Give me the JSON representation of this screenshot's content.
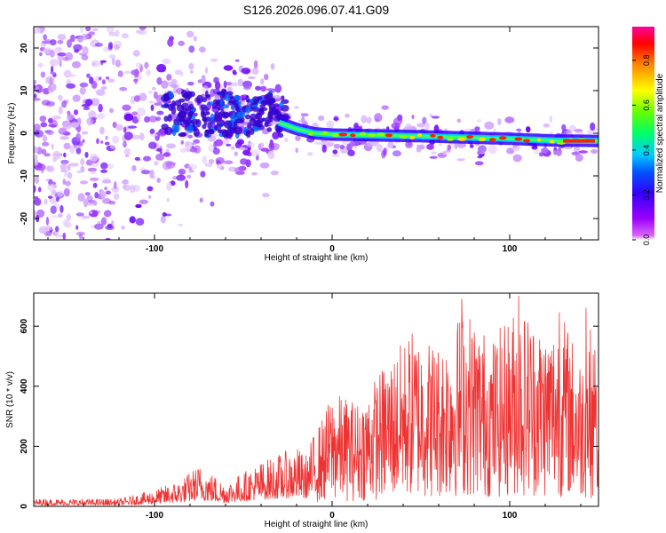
{
  "title": "S126.2026.096.07.41.G09",
  "chart_data": [
    {
      "type": "heatmap",
      "name": "spectrogram",
      "xlabel": "Height of straight line (km)",
      "ylabel": "Frequency (Hz)",
      "xlim": [
        -168,
        150
      ],
      "ylim": [
        -25,
        25
      ],
      "xticks": [
        -100,
        0,
        100
      ],
      "xtick_labels": [
        "-100",
        "0",
        "100"
      ],
      "yticks": [
        -20,
        -10,
        0,
        10,
        20
      ],
      "ytick_labels": [
        "-20",
        "-10",
        "0",
        "10",
        "20"
      ],
      "ridge_frequency_hz": [
        {
          "x": -30,
          "y": 2.5
        },
        {
          "x": -20,
          "y": 1.0
        },
        {
          "x": -10,
          "y": 0.0
        },
        {
          "x": 0,
          "y": -0.3
        },
        {
          "x": 25,
          "y": -0.5
        },
        {
          "x": 50,
          "y": -0.7
        },
        {
          "x": 75,
          "y": -1.0
        },
        {
          "x": 100,
          "y": -1.3
        },
        {
          "x": 125,
          "y": -1.7
        },
        {
          "x": 150,
          "y": -1.8
        }
      ],
      "colorbar": {
        "label": "Normalized spectral amplitude",
        "range": [
          0,
          0.95
        ],
        "ticks": [
          0.0,
          0.2,
          0.4,
          0.6,
          0.8
        ],
        "tick_labels": [
          "0.0",
          "0.2",
          "0.4",
          "0.6",
          "0.8"
        ],
        "colors": [
          "#ffffff",
          "#cc00ff",
          "#6600ff",
          "#0000ff",
          "#00aaff",
          "#00ffff",
          "#00ff33",
          "#aaff00",
          "#ffff00",
          "#ffaa00",
          "#ff0000",
          "#ff00aa"
        ]
      }
    },
    {
      "type": "line",
      "name": "snr",
      "xlabel": "Height of straight line (km)",
      "ylabel": "SNR (10 * v/v)",
      "xlim": [
        -168,
        150
      ],
      "ylim": [
        0,
        710
      ],
      "xticks": [
        -100,
        0,
        100
      ],
      "xtick_labels": [
        "-100",
        "0",
        "100"
      ],
      "yticks": [
        0,
        200,
        400,
        600
      ],
      "ytick_labels": [
        "0",
        "200",
        "400",
        "600"
      ],
      "color": "#ee3333",
      "envelope": [
        {
          "x": -168,
          "y": 25
        },
        {
          "x": -120,
          "y": 25
        },
        {
          "x": -100,
          "y": 55
        },
        {
          "x": -85,
          "y": 90
        },
        {
          "x": -75,
          "y": 140
        },
        {
          "x": -60,
          "y": 80
        },
        {
          "x": -40,
          "y": 150
        },
        {
          "x": -20,
          "y": 200
        },
        {
          "x": -15,
          "y": 170
        },
        {
          "x": -10,
          "y": 250
        },
        {
          "x": -5,
          "y": 300
        },
        {
          "x": 0,
          "y": 380
        },
        {
          "x": 15,
          "y": 350
        },
        {
          "x": 30,
          "y": 480
        },
        {
          "x": 45,
          "y": 590
        },
        {
          "x": 60,
          "y": 550
        },
        {
          "x": 75,
          "y": 670
        },
        {
          "x": 90,
          "y": 560
        },
        {
          "x": 105,
          "y": 680
        },
        {
          "x": 120,
          "y": 600
        },
        {
          "x": 130,
          "y": 640
        },
        {
          "x": 140,
          "y": 500
        },
        {
          "x": 145,
          "y": 620
        },
        {
          "x": 150,
          "y": 380
        }
      ],
      "peaks": [
        {
          "x": 73,
          "y": 690
        },
        {
          "x": 105,
          "y": 700
        },
        {
          "x": 128,
          "y": 645
        },
        {
          "x": 143,
          "y": 660
        },
        {
          "x": 148,
          "y": 520
        }
      ]
    }
  ]
}
